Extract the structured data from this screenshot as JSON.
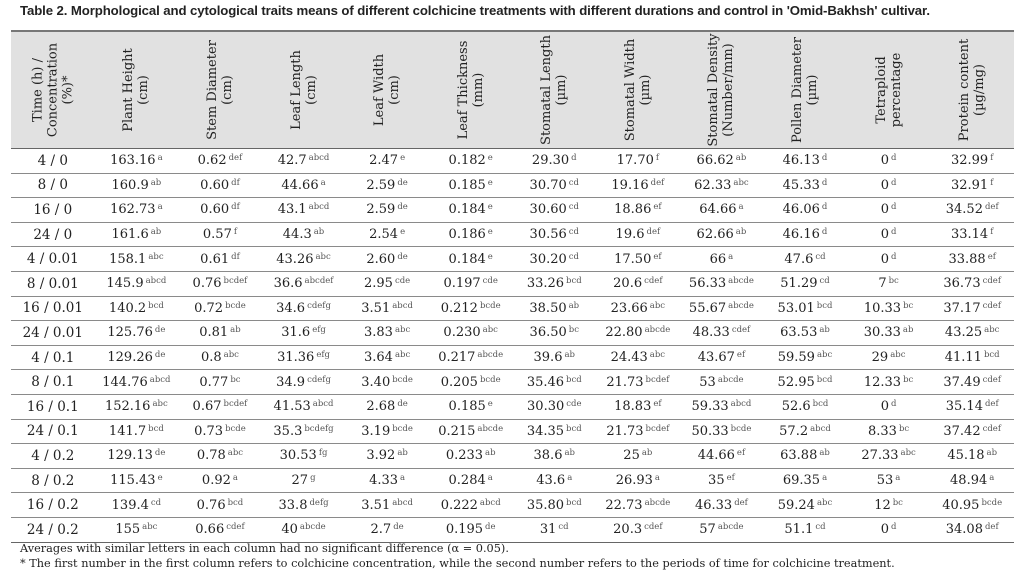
{
  "title": "Table 2. Morphological and cytological traits means of different colchicine treatments with different durations and control in 'Omid-Bakhsh' cultivar.",
  "headers": [
    [
      "Time (h) /",
      "Concentration",
      "(%)*"
    ],
    [
      "Plant Height",
      "(cm)"
    ],
    [
      "Stem Diameter",
      "(cm)"
    ],
    [
      "Leaf Length",
      "(cm)"
    ],
    [
      "Leaf Width",
      "(cm)"
    ],
    [
      "Leaf Thickness",
      "(mm)"
    ],
    [
      "Stomatal Length",
      "(µm)"
    ],
    [
      "Stomatal Width",
      "(µm)"
    ],
    [
      "Stomatal Density",
      "(Number/mm)"
    ],
    [
      "Pollen Diameter",
      "(µm)"
    ],
    [
      "Tetraploid",
      "percentage"
    ],
    [
      "Protein content",
      "(µg/mg)"
    ]
  ],
  "rows": [
    {
      "treatment": "4 / 0",
      "cells": [
        [
          "163.16",
          "a"
        ],
        [
          "0.62",
          "def"
        ],
        [
          "42.7",
          "abcd"
        ],
        [
          "2.47",
          "e"
        ],
        [
          "0.182",
          "e"
        ],
        [
          "29.30",
          "d"
        ],
        [
          "17.70",
          "f"
        ],
        [
          "66.62",
          "ab"
        ],
        [
          "46.13",
          "d"
        ],
        [
          "0",
          "d"
        ],
        [
          "32.99",
          "f"
        ]
      ]
    },
    {
      "treatment": "8 / 0",
      "cells": [
        [
          "160.9",
          "ab"
        ],
        [
          "0.60",
          "df"
        ],
        [
          "44.66",
          "a"
        ],
        [
          "2.59",
          "de"
        ],
        [
          "0.185",
          "e"
        ],
        [
          "30.70",
          "cd"
        ],
        [
          "19.16",
          "def"
        ],
        [
          "62.33",
          "abc"
        ],
        [
          "45.33",
          "d"
        ],
        [
          "0",
          "d"
        ],
        [
          "32.91",
          "f"
        ]
      ]
    },
    {
      "treatment": "16 / 0",
      "cells": [
        [
          "162.73",
          "a"
        ],
        [
          "0.60",
          "df"
        ],
        [
          "43.1",
          "abcd"
        ],
        [
          "2.59",
          "de"
        ],
        [
          "0.184",
          "e"
        ],
        [
          "30.60",
          "cd"
        ],
        [
          "18.86",
          "ef"
        ],
        [
          "64.66",
          "a"
        ],
        [
          "46.06",
          "d"
        ],
        [
          "0",
          "d"
        ],
        [
          "34.52",
          "def"
        ]
      ]
    },
    {
      "treatment": "24 / 0",
      "cells": [
        [
          "161.6",
          "ab"
        ],
        [
          "0.57",
          "f"
        ],
        [
          "44.3",
          "ab"
        ],
        [
          "2.54",
          "e"
        ],
        [
          "0.186",
          "e"
        ],
        [
          "30.56",
          "cd"
        ],
        [
          "19.6",
          "def"
        ],
        [
          "62.66",
          "ab"
        ],
        [
          "46.16",
          "d"
        ],
        [
          "0",
          "d"
        ],
        [
          "33.14",
          "f"
        ]
      ]
    },
    {
      "treatment": "4 / 0.01",
      "cells": [
        [
          "158.1",
          "abc"
        ],
        [
          "0.61",
          "df"
        ],
        [
          "43.26",
          "abc"
        ],
        [
          "2.60",
          "de"
        ],
        [
          "0.184",
          "e"
        ],
        [
          "30.20",
          "cd"
        ],
        [
          "17.50",
          "ef"
        ],
        [
          "66",
          "a"
        ],
        [
          "47.6",
          "cd"
        ],
        [
          "0",
          "d"
        ],
        [
          "33.88",
          "ef"
        ]
      ]
    },
    {
      "treatment": "8 / 0.01",
      "cells": [
        [
          "145.9",
          "abcd"
        ],
        [
          "0.76",
          "bcdef"
        ],
        [
          "36.6",
          "abcdef"
        ],
        [
          "2.95",
          "cde"
        ],
        [
          "0.197",
          "cde"
        ],
        [
          "33.26",
          "bcd"
        ],
        [
          "20.6",
          "cdef"
        ],
        [
          "56.33",
          "abcde"
        ],
        [
          "51.29",
          "cd"
        ],
        [
          "7",
          "bc"
        ],
        [
          "36.73",
          "cdef"
        ]
      ]
    },
    {
      "treatment": "16 / 0.01",
      "cells": [
        [
          "140.2",
          "bcd"
        ],
        [
          "0.72",
          "bcde"
        ],
        [
          "34.6",
          "cdefg"
        ],
        [
          "3.51",
          "abcd"
        ],
        [
          "0.212",
          "bcde"
        ],
        [
          "38.50",
          "ab"
        ],
        [
          "23.66",
          "abc"
        ],
        [
          "55.67",
          "abcde"
        ],
        [
          "53.01",
          "bcd"
        ],
        [
          "10.33",
          "bc"
        ],
        [
          "37.17",
          "cdef"
        ]
      ]
    },
    {
      "treatment": "24 / 0.01",
      "cells": [
        [
          "125.76",
          "de"
        ],
        [
          "0.81",
          "ab"
        ],
        [
          "31.6",
          "efg"
        ],
        [
          "3.83",
          "abc"
        ],
        [
          "0.230",
          "abc"
        ],
        [
          "36.50",
          "bc"
        ],
        [
          "22.80",
          "abcde"
        ],
        [
          "48.33",
          "cdef"
        ],
        [
          "63.53",
          "ab"
        ],
        [
          "30.33",
          "ab"
        ],
        [
          "43.25",
          "abc"
        ]
      ]
    },
    {
      "treatment": "4 / 0.1",
      "cells": [
        [
          "129.26",
          "de"
        ],
        [
          "0.8",
          "abc"
        ],
        [
          "31.36",
          "efg"
        ],
        [
          "3.64",
          "abc"
        ],
        [
          "0.217",
          "abcde"
        ],
        [
          "39.6",
          "ab"
        ],
        [
          "24.43",
          "abc"
        ],
        [
          "43.67",
          "ef"
        ],
        [
          "59.59",
          "abc"
        ],
        [
          "29",
          "abc"
        ],
        [
          "41.11",
          "bcd"
        ]
      ]
    },
    {
      "treatment": "8 / 0.1",
      "cells": [
        [
          "144.76",
          "abcd"
        ],
        [
          "0.77",
          "bc"
        ],
        [
          "34.9",
          "cdefg"
        ],
        [
          "3.40",
          "bcde"
        ],
        [
          "0.205",
          "bcde"
        ],
        [
          "35.46",
          "bcd"
        ],
        [
          "21.73",
          "bcdef"
        ],
        [
          "53",
          "abcde"
        ],
        [
          "52.95",
          "bcd"
        ],
        [
          "12.33",
          "bc"
        ],
        [
          "37.49",
          "cdef"
        ]
      ]
    },
    {
      "treatment": "16 / 0.1",
      "cells": [
        [
          "152.16",
          "abc"
        ],
        [
          "0.67",
          "bcdef"
        ],
        [
          "41.53",
          "abcd"
        ],
        [
          "2.68",
          "de"
        ],
        [
          "0.185",
          "e"
        ],
        [
          "30.30",
          "cde"
        ],
        [
          "18.83",
          "ef"
        ],
        [
          "59.33",
          "abcd"
        ],
        [
          "52.6",
          "bcd"
        ],
        [
          "0",
          "d"
        ],
        [
          "35.14",
          "def"
        ]
      ]
    },
    {
      "treatment": "24 / 0.1",
      "cells": [
        [
          "141.7",
          "bcd"
        ],
        [
          "0.73",
          "bcde"
        ],
        [
          "35.3",
          "bcdefg"
        ],
        [
          "3.19",
          "bcde"
        ],
        [
          "0.215",
          "abcde"
        ],
        [
          "34.35",
          "bcd"
        ],
        [
          "21.73",
          "bcdef"
        ],
        [
          "50.33",
          "bcde"
        ],
        [
          "57.2",
          "abcd"
        ],
        [
          "8.33",
          "bc"
        ],
        [
          "37.42",
          "cdef"
        ]
      ]
    },
    {
      "treatment": "4 / 0.2",
      "cells": [
        [
          "129.13",
          "de"
        ],
        [
          "0.78",
          "abc"
        ],
        [
          "30.53",
          "fg"
        ],
        [
          "3.92",
          "ab"
        ],
        [
          "0.233",
          "ab"
        ],
        [
          "38.6",
          "ab"
        ],
        [
          "25",
          "ab"
        ],
        [
          "44.66",
          "ef"
        ],
        [
          "63.88",
          "ab"
        ],
        [
          "27.33",
          "abc"
        ],
        [
          "45.18",
          "ab"
        ]
      ]
    },
    {
      "treatment": "8 / 0.2",
      "cells": [
        [
          "115.43",
          "e"
        ],
        [
          "0.92",
          "a"
        ],
        [
          "27",
          "g"
        ],
        [
          "4.33",
          "a"
        ],
        [
          "0.284",
          "a"
        ],
        [
          "43.6",
          "a"
        ],
        [
          "26.93",
          "a"
        ],
        [
          "35",
          "ef"
        ],
        [
          "69.35",
          "a"
        ],
        [
          "53",
          "a"
        ],
        [
          "48.94",
          "a"
        ]
      ]
    },
    {
      "treatment": "16 / 0.2",
      "cells": [
        [
          "139.4",
          "cd"
        ],
        [
          "0.76",
          "bcd"
        ],
        [
          "33.8",
          "defg"
        ],
        [
          "3.51",
          "abcd"
        ],
        [
          "0.222",
          "abcd"
        ],
        [
          "35.80",
          "bcd"
        ],
        [
          "22.73",
          "abcde"
        ],
        [
          "46.33",
          "def"
        ],
        [
          "59.24",
          "abc"
        ],
        [
          "12",
          "bc"
        ],
        [
          "40.95",
          "bcde"
        ]
      ]
    },
    {
      "treatment": "24 / 0.2",
      "cells": [
        [
          "155",
          "abc"
        ],
        [
          "0.66",
          "cdef"
        ],
        [
          "40",
          "abcde"
        ],
        [
          "2.7",
          "de"
        ],
        [
          "0.195",
          "de"
        ],
        [
          "31",
          "cd"
        ],
        [
          "20.3",
          "cdef"
        ],
        [
          "57",
          "abcde"
        ],
        [
          "51.1",
          "cd"
        ],
        [
          "0",
          "d"
        ],
        [
          "34.08",
          "def"
        ]
      ]
    }
  ],
  "notes": [
    "Averages with similar letters in each column had no significant difference (α = 0.05).",
    "* The first number in the first column refers to colchicine concentration, while the second number refers to the periods of time for colchicine treatment."
  ],
  "colors": {
    "header_bg": "#e1e1e1",
    "rule": "#8a8a8a"
  }
}
